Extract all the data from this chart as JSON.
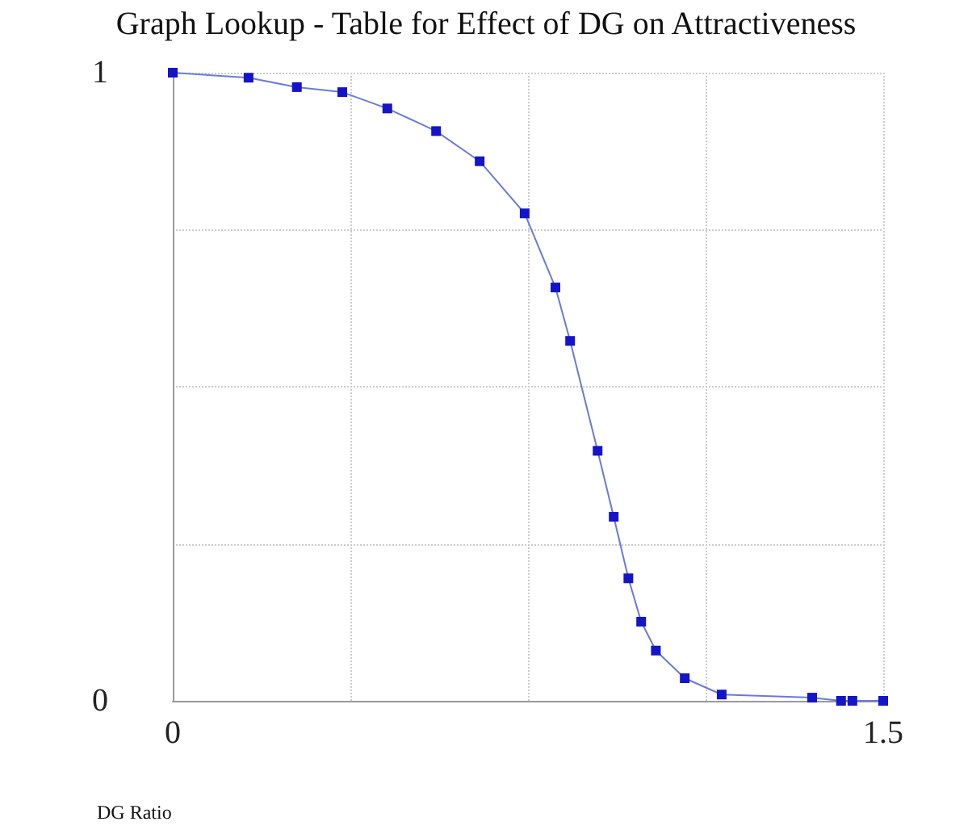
{
  "chart_data": {
    "type": "line",
    "title": "Graph Lookup - Table for Effect of DG on Attractiveness",
    "xlabel": "DG Ratio",
    "series": [
      {
        "color": "#1414c8",
        "x": [
          0,
          0.16,
          0.262,
          0.358,
          0.453,
          0.556,
          0.648,
          0.743,
          0.808,
          0.839,
          0.897,
          0.931,
          0.962,
          0.989,
          1.02,
          1.081,
          1.159,
          1.35,
          1.411,
          1.435,
          1.5
        ],
        "values": [
          1.0,
          0.992,
          0.977,
          0.969,
          0.943,
          0.907,
          0.859,
          0.776,
          0.658,
          0.573,
          0.398,
          0.293,
          0.195,
          0.126,
          0.08,
          0.036,
          0.01,
          0.005,
          0,
          0,
          0
        ]
      }
    ],
    "xlim": [
      0,
      1.5
    ],
    "ylim": [
      0,
      1
    ],
    "xticks": [
      0,
      {
        "value": 0.375,
        "label": null
      },
      {
        "value": 0.75,
        "label": null
      },
      {
        "value": 1.125,
        "label": null
      },
      1.5
    ],
    "yticks": [
      0,
      {
        "value": 0.25,
        "label": null
      },
      {
        "value": 0.5,
        "label": null
      },
      {
        "value": 0.75,
        "label": null
      },
      1
    ],
    "grid": true,
    "marker": "square",
    "line_style": "solid"
  }
}
